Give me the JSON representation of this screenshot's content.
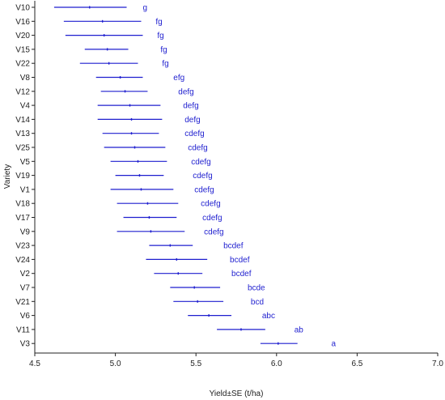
{
  "chart_data": {
    "type": "forest",
    "xlabel": "Yield±SE (t/ha)",
    "ylabel": "Variety",
    "xlim": [
      4.5,
      7.0
    ],
    "xticks": [
      "4.5",
      "5.0",
      "5.5",
      "6.0",
      "6.5",
      "7.0"
    ],
    "series_color": "#1f1fcf",
    "points": [
      {
        "variety": "V10",
        "mean": 4.84,
        "low": 4.62,
        "high": 5.07,
        "letters": "g"
      },
      {
        "variety": "V16",
        "mean": 4.92,
        "low": 4.68,
        "high": 5.16,
        "letters": "fg"
      },
      {
        "variety": "V20",
        "mean": 4.93,
        "low": 4.69,
        "high": 5.17,
        "letters": "fg"
      },
      {
        "variety": "V15",
        "mean": 4.95,
        "low": 4.81,
        "high": 5.08,
        "letters": "fg"
      },
      {
        "variety": "V22",
        "mean": 4.96,
        "low": 4.78,
        "high": 5.14,
        "letters": "fg"
      },
      {
        "variety": "V8",
        "mean": 5.03,
        "low": 4.88,
        "high": 5.17,
        "letters": "efg"
      },
      {
        "variety": "V12",
        "mean": 5.06,
        "low": 4.91,
        "high": 5.2,
        "letters": "defg"
      },
      {
        "variety": "V4",
        "mean": 5.09,
        "low": 4.89,
        "high": 5.28,
        "letters": "defg"
      },
      {
        "variety": "V14",
        "mean": 5.1,
        "low": 4.89,
        "high": 5.29,
        "letters": "defg"
      },
      {
        "variety": "V13",
        "mean": 5.1,
        "low": 4.92,
        "high": 5.27,
        "letters": "cdefg"
      },
      {
        "variety": "V25",
        "mean": 5.12,
        "low": 4.93,
        "high": 5.31,
        "letters": "cdefg"
      },
      {
        "variety": "V5",
        "mean": 5.14,
        "low": 4.97,
        "high": 5.32,
        "letters": "cdefg"
      },
      {
        "variety": "V19",
        "mean": 5.15,
        "low": 5.0,
        "high": 5.3,
        "letters": "cdefg"
      },
      {
        "variety": "V1",
        "mean": 5.16,
        "low": 4.97,
        "high": 5.36,
        "letters": "cdefg"
      },
      {
        "variety": "V18",
        "mean": 5.2,
        "low": 5.01,
        "high": 5.39,
        "letters": "cdefg"
      },
      {
        "variety": "V17",
        "mean": 5.21,
        "low": 5.05,
        "high": 5.38,
        "letters": "cdefg"
      },
      {
        "variety": "V9",
        "mean": 5.22,
        "low": 5.01,
        "high": 5.43,
        "letters": "cdefg"
      },
      {
        "variety": "V23",
        "mean": 5.34,
        "low": 5.21,
        "high": 5.48,
        "letters": "bcdef"
      },
      {
        "variety": "V24",
        "mean": 5.38,
        "low": 5.19,
        "high": 5.57,
        "letters": "bcdef"
      },
      {
        "variety": "V2",
        "mean": 5.39,
        "low": 5.24,
        "high": 5.54,
        "letters": "bcdef"
      },
      {
        "variety": "V7",
        "mean": 5.49,
        "low": 5.34,
        "high": 5.65,
        "letters": "bcde"
      },
      {
        "variety": "V21",
        "mean": 5.51,
        "low": 5.36,
        "high": 5.67,
        "letters": "bcd"
      },
      {
        "variety": "V6",
        "mean": 5.58,
        "low": 5.45,
        "high": 5.72,
        "letters": "abc"
      },
      {
        "variety": "V11",
        "mean": 5.78,
        "low": 5.63,
        "high": 5.93,
        "letters": "ab"
      },
      {
        "variety": "V3",
        "mean": 6.01,
        "low": 5.9,
        "high": 6.13,
        "letters": "a"
      }
    ]
  }
}
